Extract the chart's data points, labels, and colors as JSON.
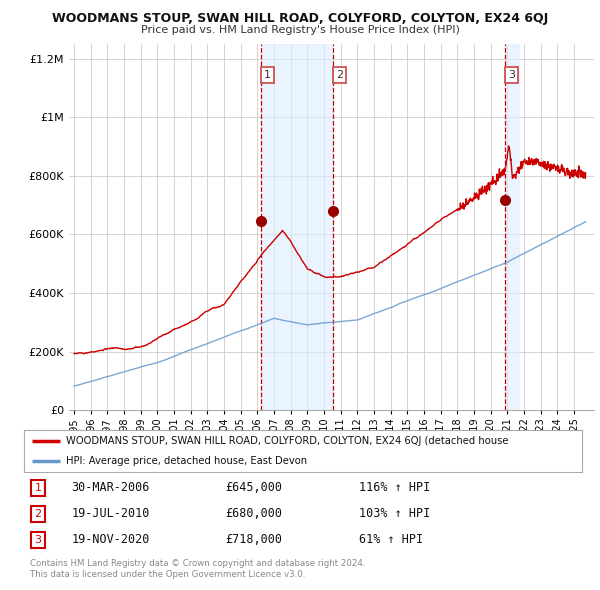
{
  "title": "WOODMANS STOUP, SWAN HILL ROAD, COLYFORD, COLYTON, EX24 6QJ",
  "subtitle": "Price paid vs. HM Land Registry's House Price Index (HPI)",
  "red_label": "WOODMANS STOUP, SWAN HILL ROAD, COLYFORD, COLYTON, EX24 6QJ (detached house",
  "blue_label": "HPI: Average price, detached house, East Devon",
  "transactions": [
    {
      "num": 1,
      "date": "30-MAR-2006",
      "price": 645000,
      "pct": "116%",
      "dir": "↑",
      "label": "HPI"
    },
    {
      "num": 2,
      "date": "19-JUL-2010",
      "price": 680000,
      "pct": "103%",
      "dir": "↑",
      "label": "HPI"
    },
    {
      "num": 3,
      "date": "19-NOV-2020",
      "price": 718000,
      "pct": "61%",
      "dir": "↑",
      "label": "HPI"
    }
  ],
  "copyright": "Contains HM Land Registry data © Crown copyright and database right 2024.\nThis data is licensed under the Open Government Licence v3.0.",
  "red_color": "#cc0000",
  "blue_color": "#6699cc",
  "shade_color": "#ddeeff",
  "vline_color": "#cc0000",
  "dot_color": "#990000",
  "grid_color": "#cccccc",
  "bg_color": "#ffffff",
  "ylim": [
    0,
    1250000
  ],
  "yticks": [
    0,
    200000,
    400000,
    600000,
    800000,
    1000000,
    1200000
  ],
  "xlim_start": 1994.7,
  "xlim_end": 2026.2,
  "transaction_years": [
    2006.247,
    2010.548,
    2020.886
  ],
  "transaction_prices": [
    645000,
    680000,
    718000
  ],
  "footnote_color": "#888888"
}
